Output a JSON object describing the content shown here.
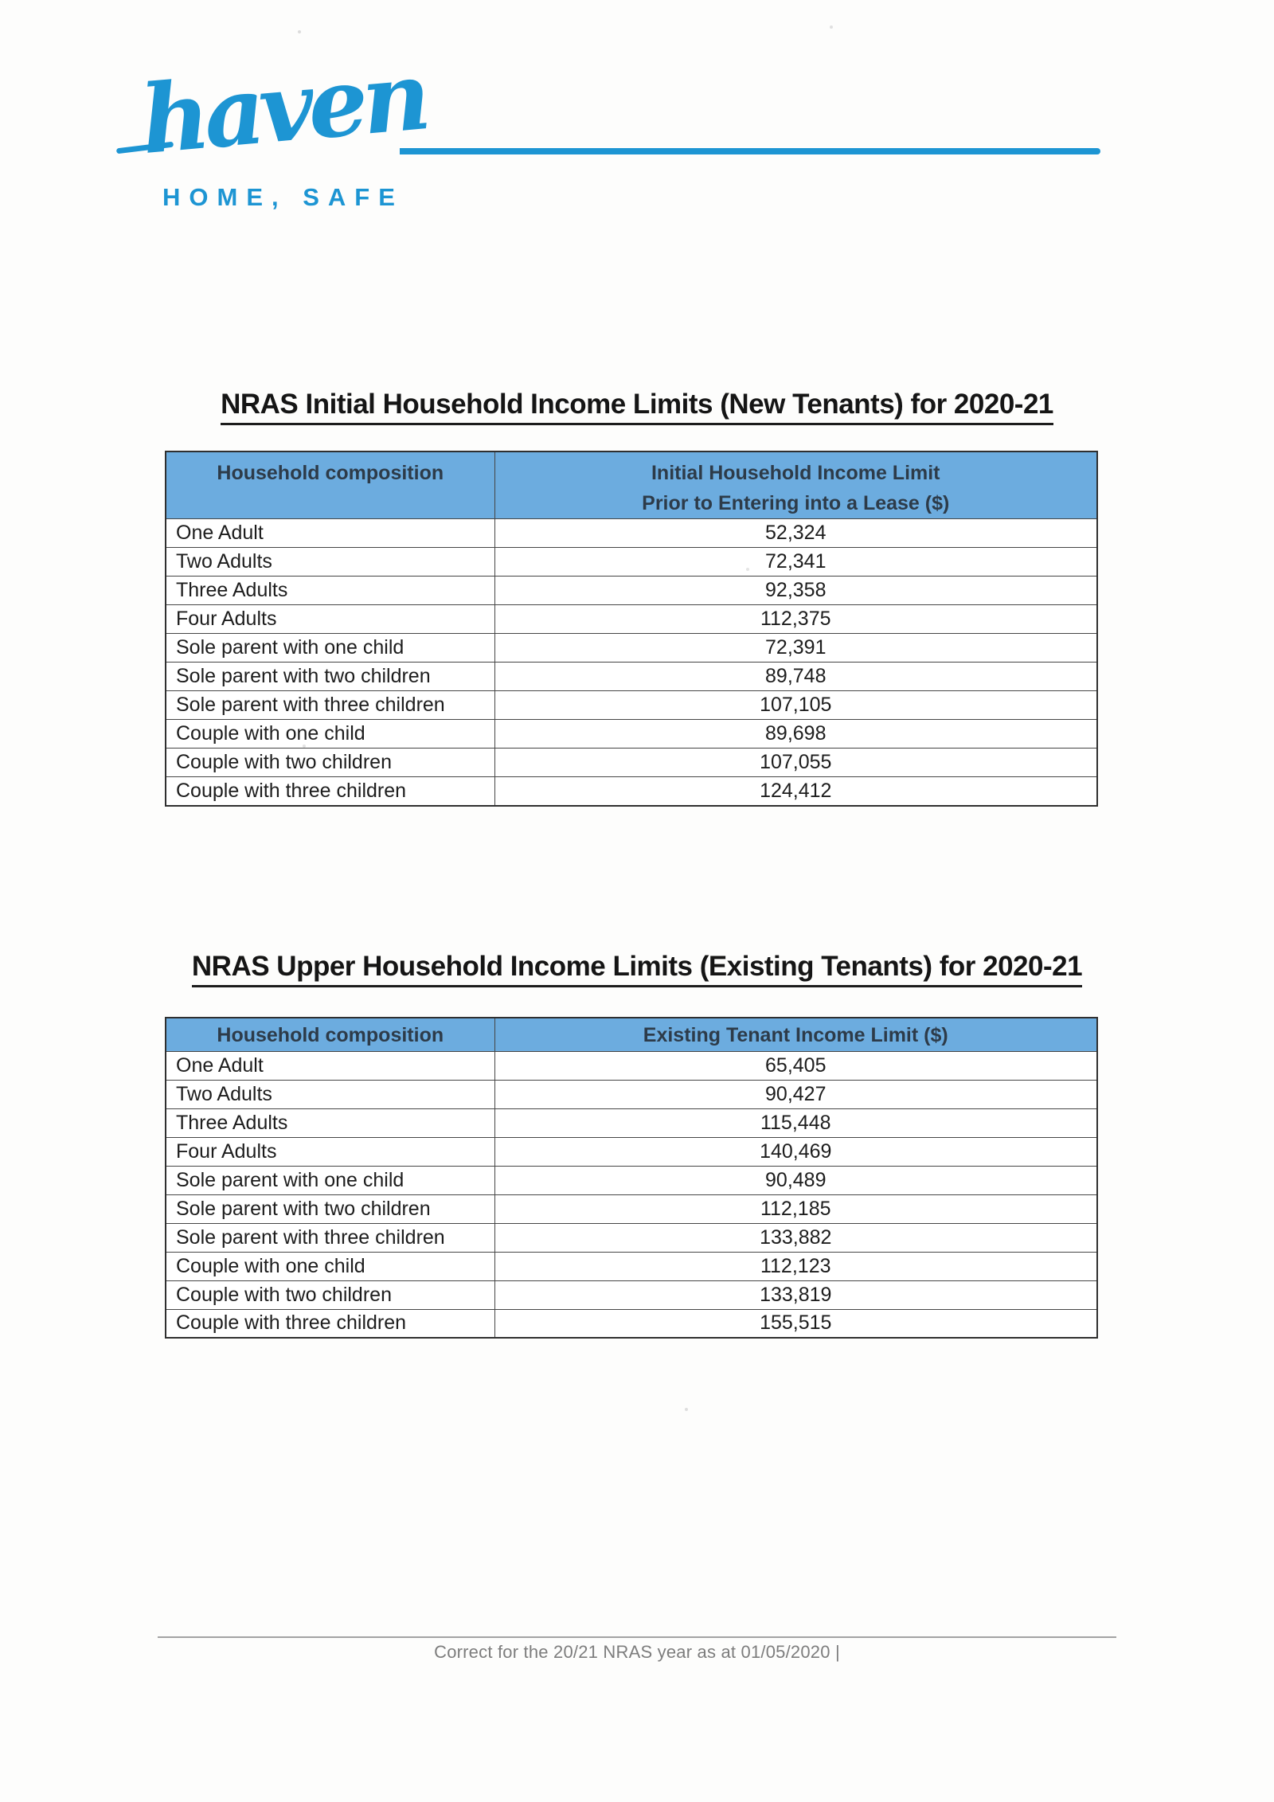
{
  "colors": {
    "brand_blue": "#1d95d3",
    "table_header_blue": "#6cacdf",
    "title_black": "#151515",
    "footer_gray": "#7d7d7d"
  },
  "logo": {
    "script": "haven",
    "tagline": "HOME, SAFE"
  },
  "tables": [
    {
      "title": "NRAS Initial Household Income Limits (New Tenants) for 2020-21",
      "col_household": "Household composition",
      "col_limit_line1": "Initial Household Income Limit",
      "col_limit_line2": "Prior to Entering into a Lease ($)",
      "rows": [
        {
          "composition": "One Adult",
          "limit": "52,324"
        },
        {
          "composition": "Two Adults",
          "limit": "72,341"
        },
        {
          "composition": "Three Adults",
          "limit": "92,358"
        },
        {
          "composition": "Four Adults",
          "limit": "112,375"
        },
        {
          "composition": "Sole parent with one child",
          "limit": "72,391"
        },
        {
          "composition": "Sole parent with two children",
          "limit": "89,748"
        },
        {
          "composition": "Sole parent with three children",
          "limit": "107,105"
        },
        {
          "composition": "Couple with one child",
          "limit": "89,698"
        },
        {
          "composition": "Couple with two children",
          "limit": "107,055"
        },
        {
          "composition": "Couple with three children",
          "limit": "124,412"
        }
      ]
    },
    {
      "title": "NRAS Upper Household Income Limits (Existing Tenants) for 2020-21",
      "col_household": "Household composition",
      "col_limit": "Existing Tenant Income Limit ($)",
      "rows": [
        {
          "composition": "One Adult",
          "limit": "65,405"
        },
        {
          "composition": "Two Adults",
          "limit": "90,427"
        },
        {
          "composition": "Three Adults",
          "limit": "115,448"
        },
        {
          "composition": "Four Adults",
          "limit": "140,469"
        },
        {
          "composition": "Sole parent with one child",
          "limit": "90,489"
        },
        {
          "composition": "Sole parent with two children",
          "limit": "112,185"
        },
        {
          "composition": "Sole parent with three children",
          "limit": "133,882"
        },
        {
          "composition": "Couple with one child",
          "limit": "112,123"
        },
        {
          "composition": "Couple with two children",
          "limit": "133,819"
        },
        {
          "composition": "Couple with three children",
          "limit": "155,515"
        }
      ]
    }
  ],
  "footer": {
    "note": "Correct for the 20/21 NRAS year as at 01/05/2020 |"
  }
}
